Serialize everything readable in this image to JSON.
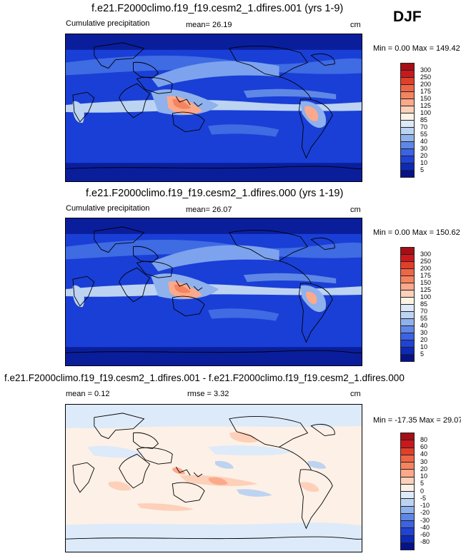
{
  "season": "DJF",
  "panels": [
    {
      "title": "f.e21.F2000climo.f19_f19.cesm2_1.dfires.001 (yrs 1-9)",
      "left_label": "Cumulative precipitation",
      "mean_label": "mean=  26.19",
      "units": "cm",
      "minmax": "Min =   0.00 Max = 149.42",
      "kind": "abs"
    },
    {
      "title": "f.e21.F2000climo.f19_f19.cesm2_1.dfires.000 (yrs 1-19)",
      "left_label": "Cumulative precipitation",
      "mean_label": "mean=  26.07",
      "units": "cm",
      "minmax": "Min =   0.00 Max = 150.62",
      "kind": "abs"
    },
    {
      "title": "f.e21.F2000climo.f19_f19.cesm2_1.dfires.001 - f.e21.F2000climo.f19_f19.cesm2_1.dfires.000",
      "left_label": "mean =   0.12",
      "mean_label": "rmse =   3.32",
      "units": "cm",
      "minmax": "Min = -17.35 Max =  29.07",
      "kind": "diff"
    }
  ],
  "colorbar_abs": {
    "labels": [
      "300",
      "250",
      "200",
      "175",
      "150",
      "125",
      "100",
      "85",
      "70",
      "55",
      "40",
      "30",
      "20",
      "10",
      "5"
    ],
    "colors": [
      "#a50f15",
      "#cb181d",
      "#e0402a",
      "#ef6548",
      "#f4845f",
      "#fca98b",
      "#fdd0b9",
      "#fff3e6",
      "#dde9f8",
      "#bcd3f2",
      "#8fb1ec",
      "#5f87e6",
      "#3c63e3",
      "#2043d6",
      "#0d2ab5",
      "#05128a"
    ]
  },
  "colorbar_diff": {
    "labels": [
      "80",
      "60",
      "40",
      "30",
      "20",
      "10",
      "5",
      "0",
      "-5",
      "-10",
      "-20",
      "-30",
      "-40",
      "-60",
      "-80"
    ],
    "colors": [
      "#a50f15",
      "#cb181d",
      "#e0402a",
      "#ef6548",
      "#f4845f",
      "#fca98b",
      "#fdd0b9",
      "#fdf0e6",
      "#ddeaf9",
      "#bcd3f2",
      "#8fb1ec",
      "#5f87e6",
      "#3c63e3",
      "#2043d6",
      "#0d2ab5",
      "#05128a"
    ]
  },
  "chart_data": [
    {
      "type": "heatmap",
      "title": "f.e21.F2000climo.f19_f19.cesm2_1.dfires.001 (yrs 1-9)",
      "variable": "Cumulative precipitation",
      "units": "cm",
      "mean": 26.19,
      "min": 0.0,
      "max": 149.42,
      "season": "DJF",
      "contour_levels": [
        5,
        10,
        20,
        30,
        40,
        55,
        70,
        85,
        100,
        125,
        150,
        175,
        200,
        250,
        300
      ]
    },
    {
      "type": "heatmap",
      "title": "f.e21.F2000climo.f19_f19.cesm2_1.dfires.000 (yrs 1-19)",
      "variable": "Cumulative precipitation",
      "units": "cm",
      "mean": 26.07,
      "min": 0.0,
      "max": 150.62,
      "season": "DJF",
      "contour_levels": [
        5,
        10,
        20,
        30,
        40,
        55,
        70,
        85,
        100,
        125,
        150,
        175,
        200,
        250,
        300
      ]
    },
    {
      "type": "heatmap",
      "title": "f.e21.F2000climo.f19_f19.cesm2_1.dfires.001 - f.e21.F2000climo.f19_f19.cesm2_1.dfires.000",
      "units": "cm",
      "mean": 0.12,
      "rmse": 3.32,
      "min": -17.35,
      "max": 29.07,
      "season": "DJF",
      "contour_levels": [
        -80,
        -60,
        -40,
        -30,
        -20,
        -10,
        -5,
        0,
        5,
        10,
        20,
        30,
        40,
        60,
        80
      ]
    }
  ]
}
